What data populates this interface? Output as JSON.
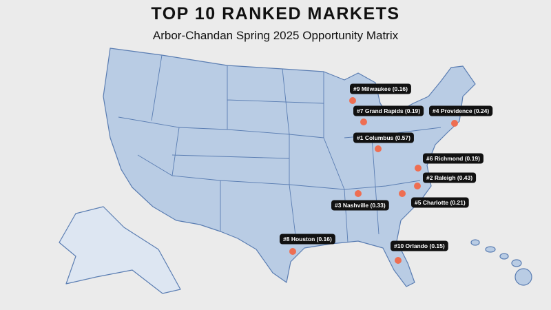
{
  "header": {
    "title": "TOP 10 RANKED MARKETS",
    "subtitle": "Arbor-Chandan Spring 2025 Opportunity Matrix"
  },
  "markers": [
    {
      "label": "#9 Milwaukee (0.16)"
    },
    {
      "label": "#7 Grand Rapids (0.19)"
    },
    {
      "label": "#4 Providence (0.24)"
    },
    {
      "label": "#1 Columbus (0.57)"
    },
    {
      "label": "#6 Richmond (0.19)"
    },
    {
      "label": "#2 Raleigh (0.43)"
    },
    {
      "label": "#3 Nashville (0.33)"
    },
    {
      "label": "#5 Charlotte (0.21)"
    },
    {
      "label": "#8 Houston (0.16)"
    },
    {
      "label": "#10 Orlando (0.15)"
    }
  ]
}
